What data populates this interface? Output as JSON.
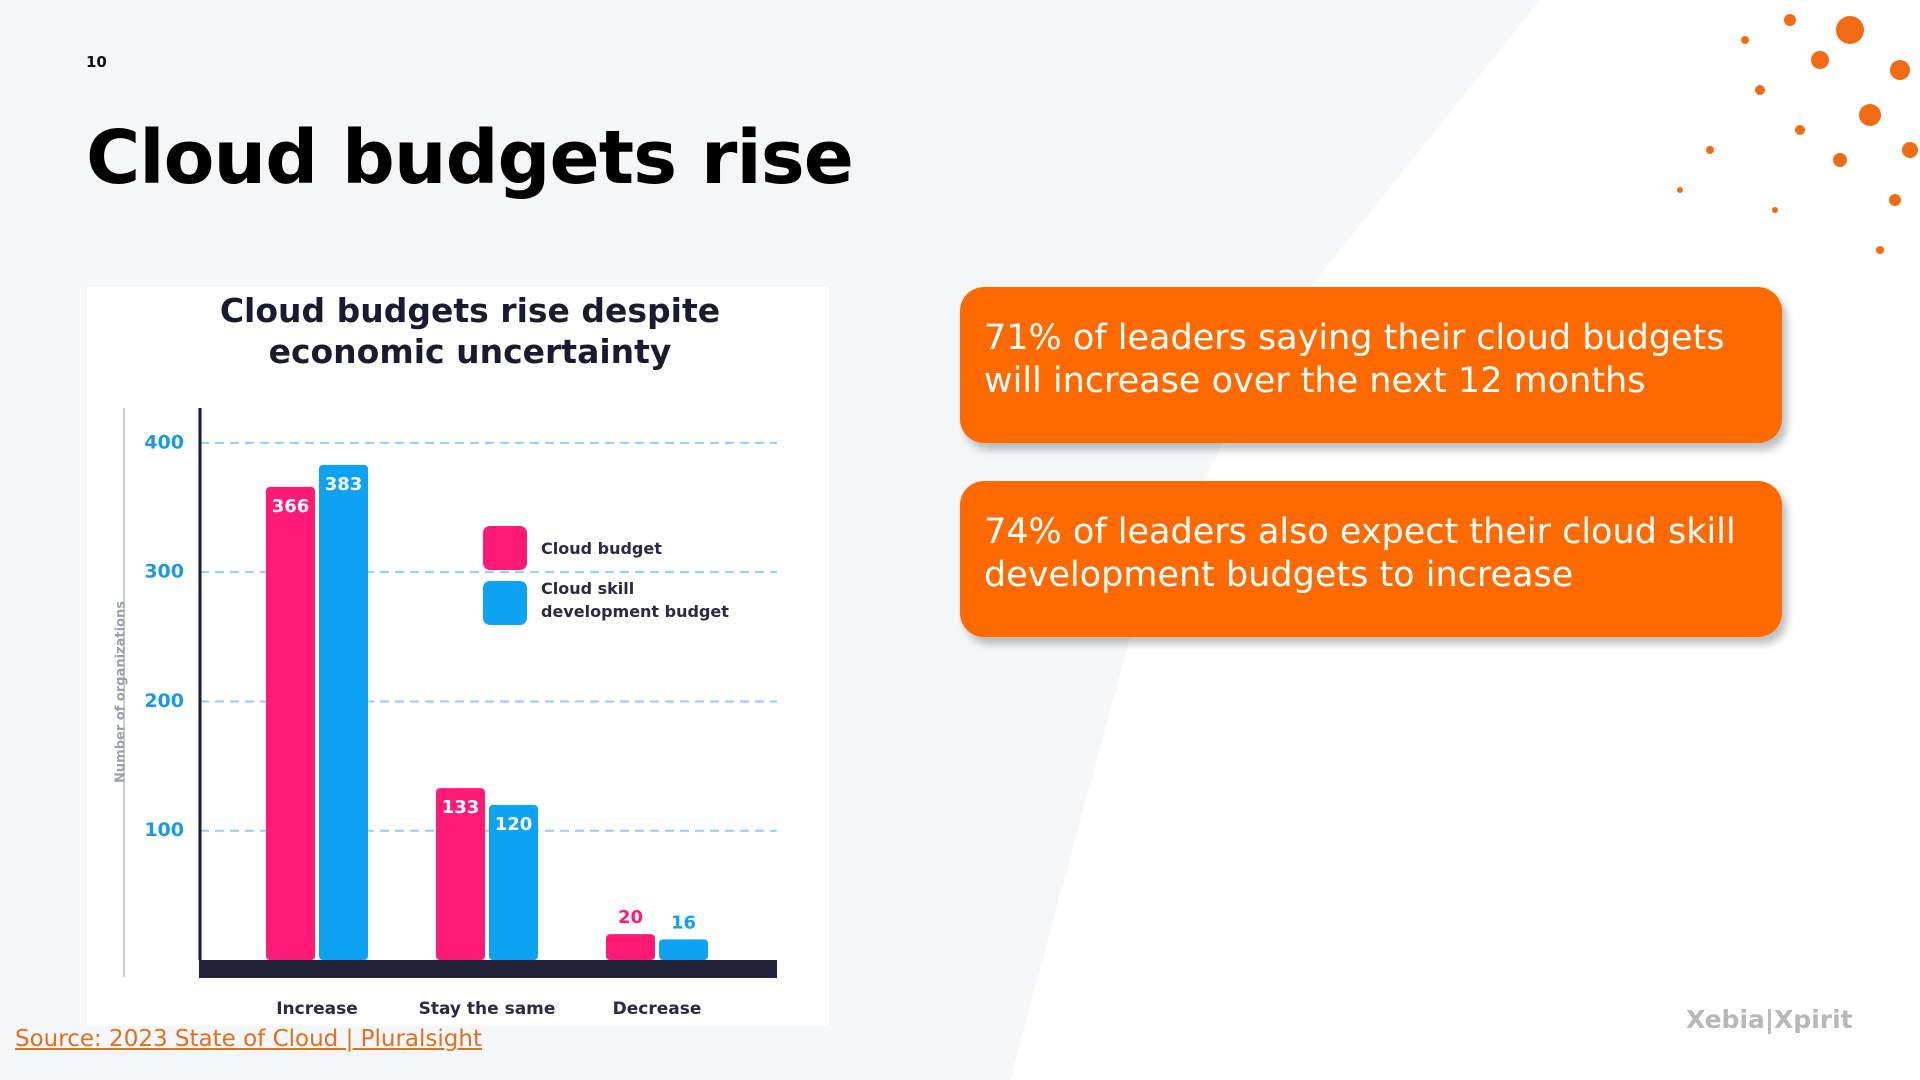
{
  "page_number": "10",
  "title": "Cloud budgets rise",
  "chart_data": {
    "type": "bar",
    "title": "Cloud budgets rise despite economic uncertainty",
    "y_label": "Number of organizations",
    "categories": [
      "Increase",
      "Stay the same",
      "Decrease"
    ],
    "series": [
      {
        "name": "Cloud budget",
        "color": "#ff1a75",
        "values": [
          366,
          133,
          20
        ]
      },
      {
        "name": "Cloud skill development budget",
        "color": "#0ea2f2",
        "values": [
          383,
          120,
          16
        ]
      }
    ],
    "ylim": [
      0,
      427
    ],
    "yticks": [
      100,
      200,
      300,
      400
    ],
    "grid": true
  },
  "callouts": [
    "71% of leaders saying their cloud budgets will increase over the next 12 months",
    "74% of leaders also expect their cloud skill development budgets to increase"
  ],
  "source": "Source: 2023 State of Cloud | Pluralsight",
  "logo": "Xebia|Xpirit"
}
